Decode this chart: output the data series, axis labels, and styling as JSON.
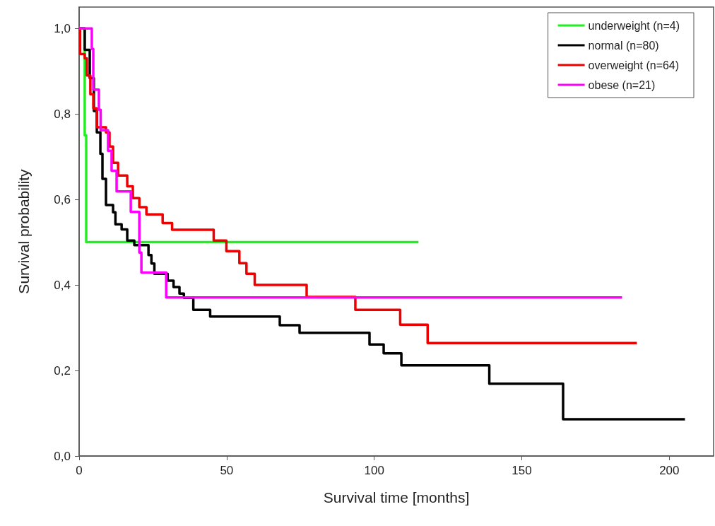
{
  "chart_data": {
    "type": "step",
    "xlabel": "Survival time [months]",
    "ylabel": "Survival probability",
    "xlim": [
      0,
      215
    ],
    "xticks": [
      0,
      50,
      100,
      150,
      200
    ],
    "ylim": [
      0,
      1.05
    ],
    "yticks": [
      {
        "value": 0,
        "label": "0,0"
      },
      {
        "value": 0.2,
        "label": "0,2"
      },
      {
        "value": 0.4,
        "label": "0,4"
      },
      {
        "value": 0.6,
        "label": "0,6"
      },
      {
        "value": 0.8,
        "label": "0,8"
      },
      {
        "value": 1,
        "label": "1,0"
      }
    ],
    "grid": false,
    "legend": "top right",
    "series": [
      {
        "name": "underweight (n=4)",
        "color": "#22ee22",
        "x": [
          0,
          1.9,
          2.4,
          115
        ],
        "values": [
          1,
          0.75,
          0.5,
          0.5
        ]
      },
      {
        "name": "normal (n=80)",
        "color": "#000000",
        "x": [
          0,
          1.9,
          3.6,
          5,
          6,
          7.2,
          7.9,
          9.1,
          11.5,
          12.3,
          14.4,
          16.3,
          18.7,
          23.5,
          24.5,
          25.5,
          30,
          32,
          34,
          35.5,
          38.7,
          44.4,
          68,
          74.7,
          98.4,
          103.2,
          109.2,
          139,
          164,
          205.3
        ],
        "values": [
          1,
          0.95,
          0.884,
          0.807,
          0.757,
          0.707,
          0.648,
          0.587,
          0.57,
          0.542,
          0.53,
          0.504,
          0.493,
          0.47,
          0.45,
          0.426,
          0.41,
          0.395,
          0.38,
          0.37,
          0.342,
          0.326,
          0.306,
          0.288,
          0.261,
          0.24,
          0.212,
          0.169,
          0.086,
          0.086
        ]
      },
      {
        "name": "overweight (n=64)",
        "color": "#ee0000",
        "x": [
          0,
          0.3,
          1.9,
          2.6,
          3.8,
          4.8,
          6,
          9.1,
          10.3,
          11.5,
          13.2,
          16.3,
          18.2,
          20.4,
          22.8,
          28.3,
          31.5,
          45.6,
          49.9,
          54.3,
          56.7,
          59.5,
          77.1,
          93.6,
          108.8,
          118.1,
          189
        ],
        "values": [
          1,
          0.94,
          0.93,
          0.89,
          0.846,
          0.813,
          0.769,
          0.757,
          0.724,
          0.686,
          0.656,
          0.631,
          0.603,
          0.582,
          0.565,
          0.545,
          0.529,
          0.504,
          0.479,
          0.451,
          0.426,
          0.4,
          0.372,
          0.342,
          0.307,
          0.264,
          0.264
        ]
      },
      {
        "name": "obese (n=21)",
        "color": "#ff00ff",
        "x": [
          0,
          4.3,
          4.8,
          6.7,
          7.3,
          9.8,
          11,
          12.7,
          17.5,
          20.4,
          21.1,
          29.5,
          184
        ],
        "values": [
          1,
          0.952,
          0.857,
          0.81,
          0.762,
          0.714,
          0.667,
          0.619,
          0.571,
          0.476,
          0.429,
          0.371,
          0.371
        ]
      }
    ]
  }
}
